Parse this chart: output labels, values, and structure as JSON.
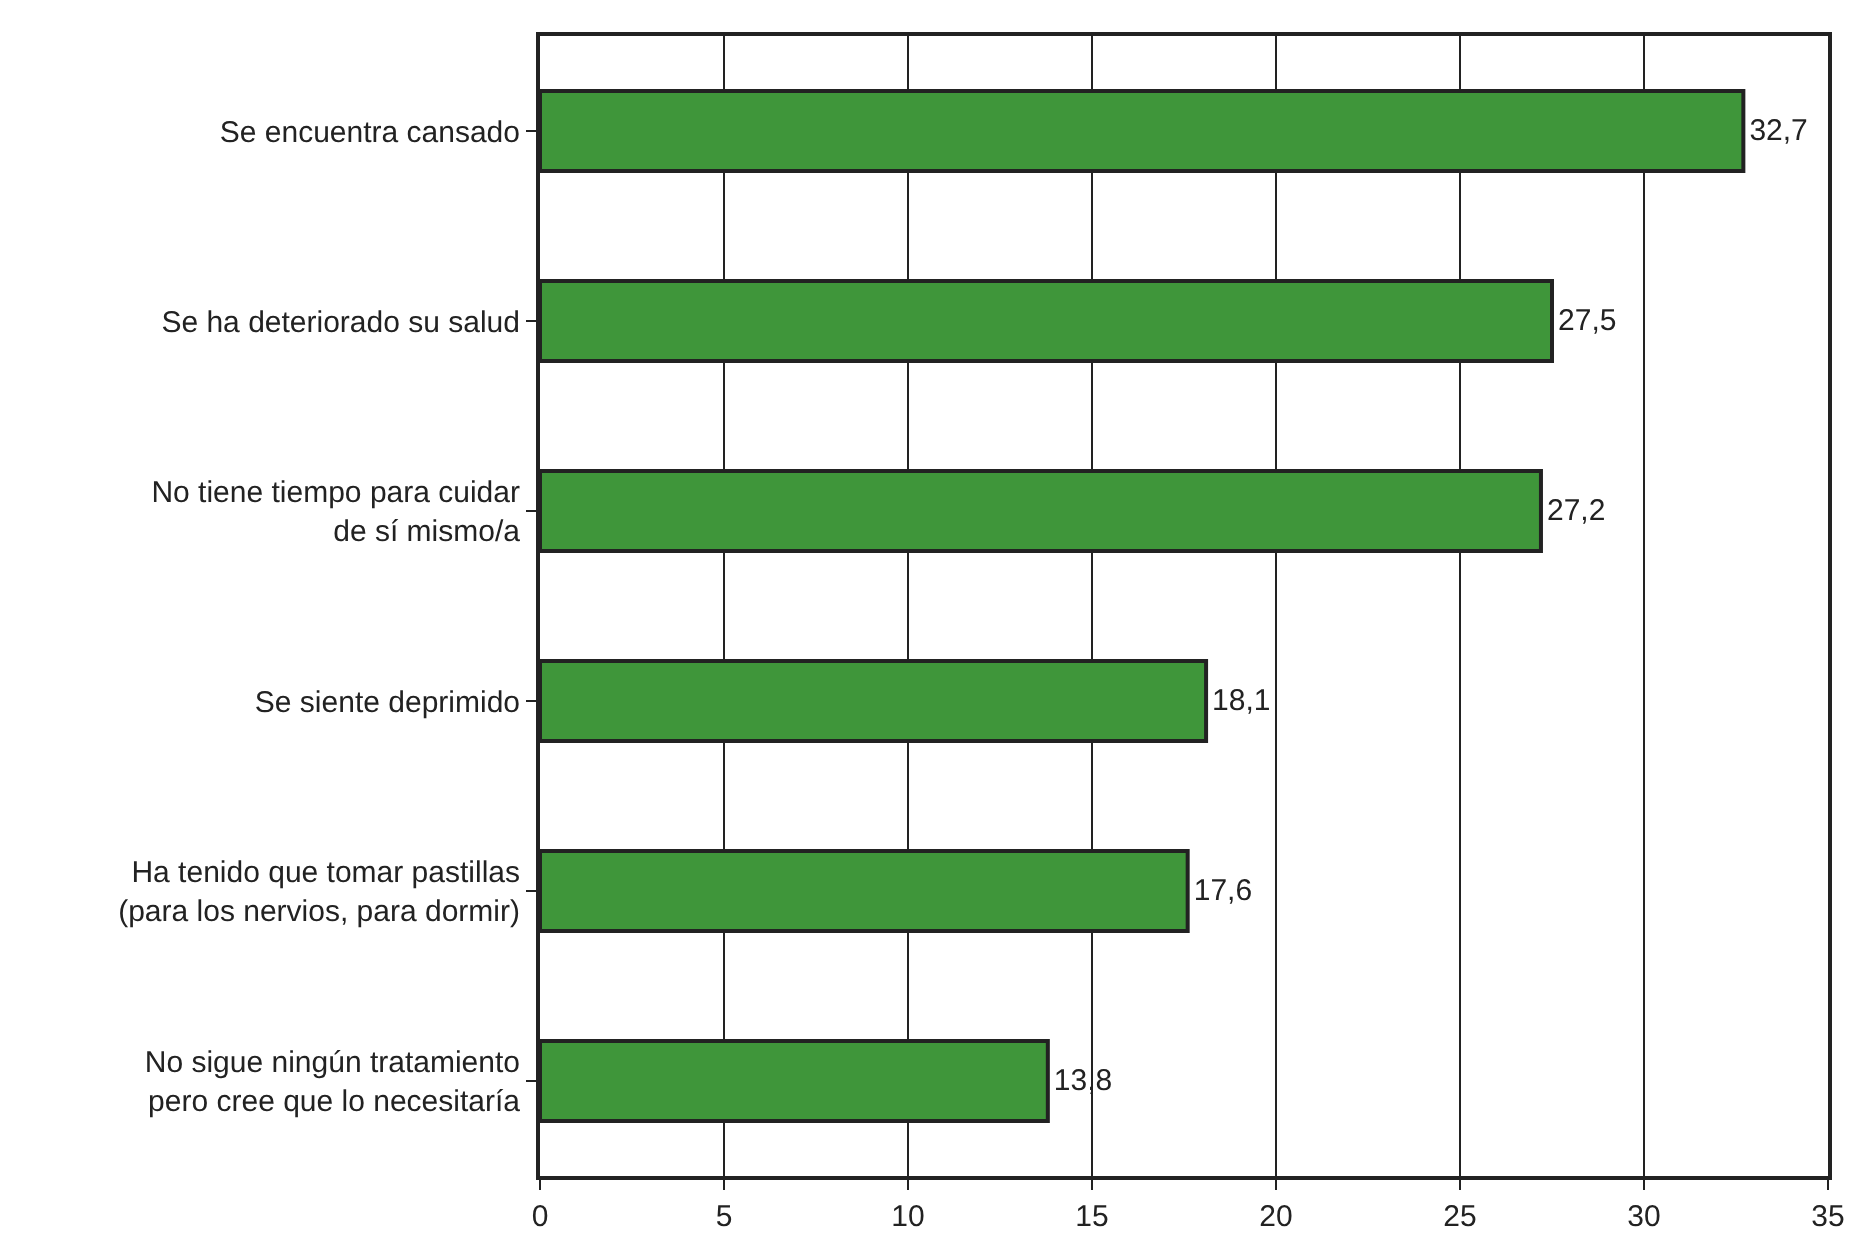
{
  "chart_data": {
    "type": "bar",
    "orientation": "horizontal",
    "categories": [
      "Se encuentra cansado",
      "Se ha deteriorado su salud",
      "No tiene tiempo para cuidar\nde sí mismo/a",
      "Se siente deprimido",
      "Ha tenido que tomar pastillas\n(para los nervios, para dormir)",
      "No sigue ningún tratamiento\npero cree que lo necesitaría"
    ],
    "values": [
      32.7,
      27.5,
      27.2,
      18.1,
      17.6,
      13.8
    ],
    "value_labels": [
      "32,7",
      "27,5",
      "27,2",
      "18,1",
      "17,6",
      "13,8"
    ],
    "color": "#3f963a",
    "xlim": [
      0,
      35
    ],
    "xticks": [
      0,
      5,
      10,
      15,
      20,
      25,
      30,
      35
    ],
    "grid": "x",
    "legend": false
  }
}
